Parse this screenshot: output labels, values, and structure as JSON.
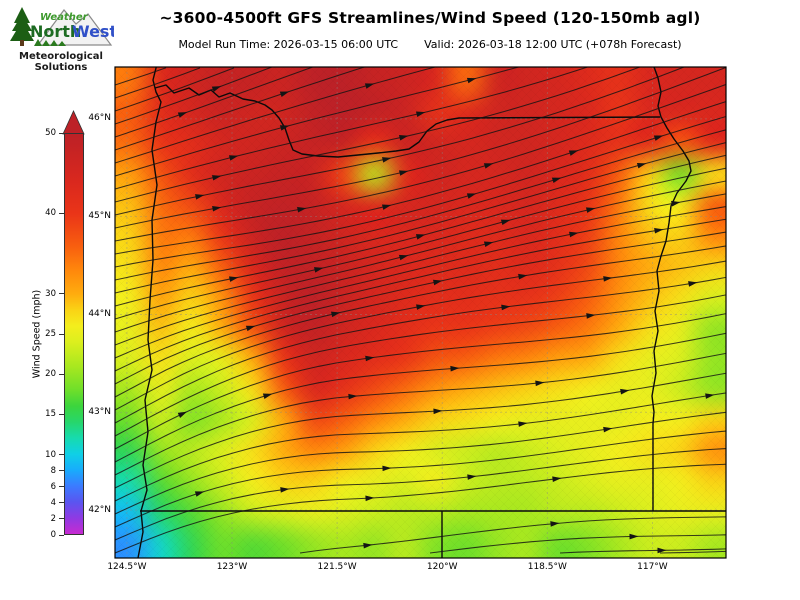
{
  "header": {
    "title": "~3600-4500ft GFS Streamlines/Wind Speed (120-150mb agl)",
    "model_run_label": "Model Run Time: 2026-03-15 06:00 UTC",
    "valid_label": "Valid: 2026-03-18 12:00 UTC  (+078h Forecast)"
  },
  "logo": {
    "weather": "Weather",
    "north": "North",
    "west": "West",
    "sub1": "Meteorological",
    "sub2": "Solutions"
  },
  "chart_data": {
    "type": "heatmap",
    "title": "~3600-4500ft GFS Streamlines/Wind Speed (120-150mb agl)",
    "overlay": "streamlines with black arrows, flow west-to-east veering northeast in the north",
    "region": "Oregon / Pacific Northwest with state borders",
    "colorbar_label": "Wind Speed (mph)",
    "colorbar_range": [
      0,
      50
    ],
    "colorbar_ticks": [
      0,
      2,
      4,
      6,
      8,
      10,
      15,
      20,
      25,
      30,
      40,
      50
    ],
    "colormap_stops": [
      [
        0,
        "#c72bd1"
      ],
      [
        2,
        "#8f3ae3"
      ],
      [
        4,
        "#5a55f0"
      ],
      [
        6,
        "#3b7bff"
      ],
      [
        8,
        "#18acfc"
      ],
      [
        10,
        "#0fd0e6"
      ],
      [
        12,
        "#17dbae"
      ],
      [
        14,
        "#27d66b"
      ],
      [
        16,
        "#3cd53d"
      ],
      [
        18,
        "#6fdf2a"
      ],
      [
        21,
        "#a9e81f"
      ],
      [
        24,
        "#dcef1e"
      ],
      [
        26,
        "#f4ee1d"
      ],
      [
        28,
        "#fad315"
      ],
      [
        30,
        "#ffac0e"
      ],
      [
        33,
        "#ff870c"
      ],
      [
        36,
        "#f85e0f"
      ],
      [
        40,
        "#ea3518"
      ],
      [
        44,
        "#da281e"
      ],
      [
        48,
        "#c62323"
      ],
      [
        50,
        "#bd2127"
      ]
    ],
    "lon_ticks": [
      {
        "label": "124.5°W",
        "deg": 124.5
      },
      {
        "label": "123°W",
        "deg": 123
      },
      {
        "label": "121.5°W",
        "deg": 121.5
      },
      {
        "label": "120°W",
        "deg": 120
      },
      {
        "label": "118.5°W",
        "deg": 118.5
      },
      {
        "label": "117°W",
        "deg": 117
      }
    ],
    "lat_ticks": [
      {
        "label": "46°N",
        "deg": 46
      },
      {
        "label": "45°N",
        "deg": 45
      },
      {
        "label": "44°N",
        "deg": 44
      },
      {
        "label": "43°N",
        "deg": 43
      },
      {
        "label": "42°N",
        "deg": 42
      }
    ],
    "extent": {
      "lon_west": 124.67,
      "lon_east": 115.95,
      "lat_north": 46.53,
      "lat_south": 41.51
    },
    "wind_grid_mph": {
      "cols": 20,
      "rows": 16,
      "values": [
        [
          34,
          43,
          46,
          48,
          48,
          47,
          50,
          50,
          48,
          47,
          44,
          35,
          46,
          46,
          45,
          43,
          41,
          44,
          45,
          45
        ],
        [
          36,
          42,
          45,
          47,
          46,
          46,
          49,
          50,
          49,
          47,
          41,
          43,
          46,
          46,
          45,
          44,
          40,
          44,
          44,
          44
        ],
        [
          35,
          40,
          42,
          45,
          46,
          47,
          48,
          48,
          40,
          47,
          46,
          45,
          46,
          46,
          45,
          43,
          41,
          42,
          36,
          42
        ],
        [
          31,
          37,
          42,
          46,
          47,
          48,
          47,
          38,
          22,
          42,
          46,
          45,
          45,
          46,
          44,
          42,
          36,
          28,
          18,
          27
        ],
        [
          29,
          35,
          38,
          44,
          48,
          49,
          48,
          45,
          43,
          45,
          45,
          44,
          44,
          45,
          43,
          40,
          34,
          27,
          26,
          36
        ],
        [
          28,
          34,
          34,
          40,
          47,
          50,
          48,
          46,
          44,
          44,
          44,
          43,
          43,
          44,
          42,
          39,
          33,
          29,
          28,
          33
        ],
        [
          27,
          33,
          30,
          36,
          44,
          49,
          49,
          47,
          45,
          44,
          43,
          43,
          42,
          43,
          41,
          38,
          33,
          30,
          29,
          28
        ],
        [
          26,
          31,
          28,
          32,
          40,
          47,
          50,
          47,
          45,
          43,
          42,
          42,
          41,
          41,
          39,
          36,
          32,
          29,
          27,
          24
        ],
        [
          25,
          29,
          26,
          30,
          37,
          46,
          49,
          46,
          44,
          42,
          40,
          40,
          39,
          38,
          36,
          34,
          30,
          27,
          25,
          20
        ],
        [
          24,
          27,
          24,
          25,
          30,
          40,
          46,
          44,
          42,
          40,
          37,
          36,
          34,
          33,
          31,
          30,
          27,
          25,
          24,
          20
        ],
        [
          21,
          25,
          21,
          23,
          27,
          36,
          44,
          41,
          38,
          35,
          32,
          30,
          29,
          28,
          27,
          26,
          25,
          25,
          23,
          20
        ],
        [
          18,
          23,
          19,
          21,
          24,
          30,
          38,
          36,
          33,
          30,
          28,
          27,
          26,
          25,
          25,
          25,
          25,
          26,
          26,
          28
        ],
        [
          15,
          20,
          22,
          24,
          27,
          30,
          33,
          31,
          28,
          26,
          24,
          23,
          22,
          23,
          24,
          25,
          26,
          27,
          28,
          32
        ],
        [
          12,
          17,
          20,
          23,
          26,
          28,
          28,
          26,
          25,
          24,
          26,
          23,
          22,
          22,
          23,
          24,
          25,
          25,
          26,
          28
        ],
        [
          9,
          14,
          17,
          20,
          23,
          24,
          25,
          24,
          23,
          22,
          22,
          21,
          21,
          21,
          22,
          22,
          23,
          24,
          25,
          25
        ],
        [
          7,
          11,
          15,
          18,
          17,
          18,
          20,
          21,
          20,
          22,
          19,
          18,
          20,
          21,
          18,
          19,
          21,
          23,
          23,
          21
        ]
      ]
    }
  }
}
